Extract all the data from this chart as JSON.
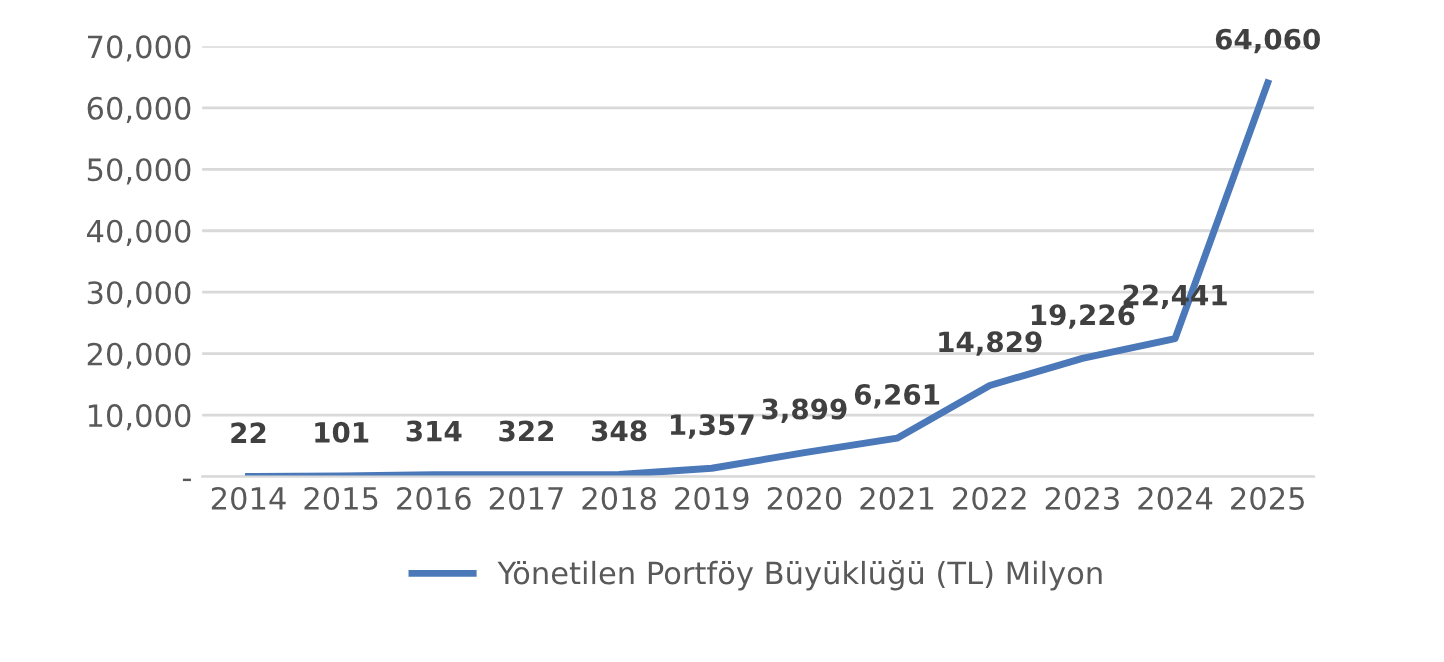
{
  "chart_data": {
    "type": "line",
    "categories": [
      "2014",
      "2015",
      "2016",
      "2017",
      "2018",
      "2019",
      "2020",
      "2021",
      "2022",
      "2023",
      "2024",
      "2025"
    ],
    "series": [
      {
        "name": "Yönetilen Portföy Büyüklüğü (TL) Milyon",
        "color": "#4a78b8",
        "values": [
          22,
          101,
          314,
          322,
          348,
          1357,
          3899,
          6261,
          14829,
          19226,
          22441,
          64060
        ]
      }
    ],
    "value_labels": [
      "22",
      "101",
      "314",
      "322",
      "348",
      "1,357",
      "3,899",
      "6,261",
      "14,829",
      "19,226",
      "22,441",
      "64,060"
    ],
    "ylim": [
      0,
      70000
    ],
    "yticks": [
      {
        "value": 0,
        "label": "-"
      },
      {
        "value": 10000,
        "label": "10,000"
      },
      {
        "value": 20000,
        "label": "20,000"
      },
      {
        "value": 30000,
        "label": "30,000"
      },
      {
        "value": 40000,
        "label": "40,000"
      },
      {
        "value": 50000,
        "label": "50,000"
      },
      {
        "value": 60000,
        "label": "60,000"
      },
      {
        "value": 70000,
        "label": "70,000"
      }
    ],
    "grid": "y",
    "legend": "bottom",
    "marker": "none",
    "line_style": "solid"
  }
}
